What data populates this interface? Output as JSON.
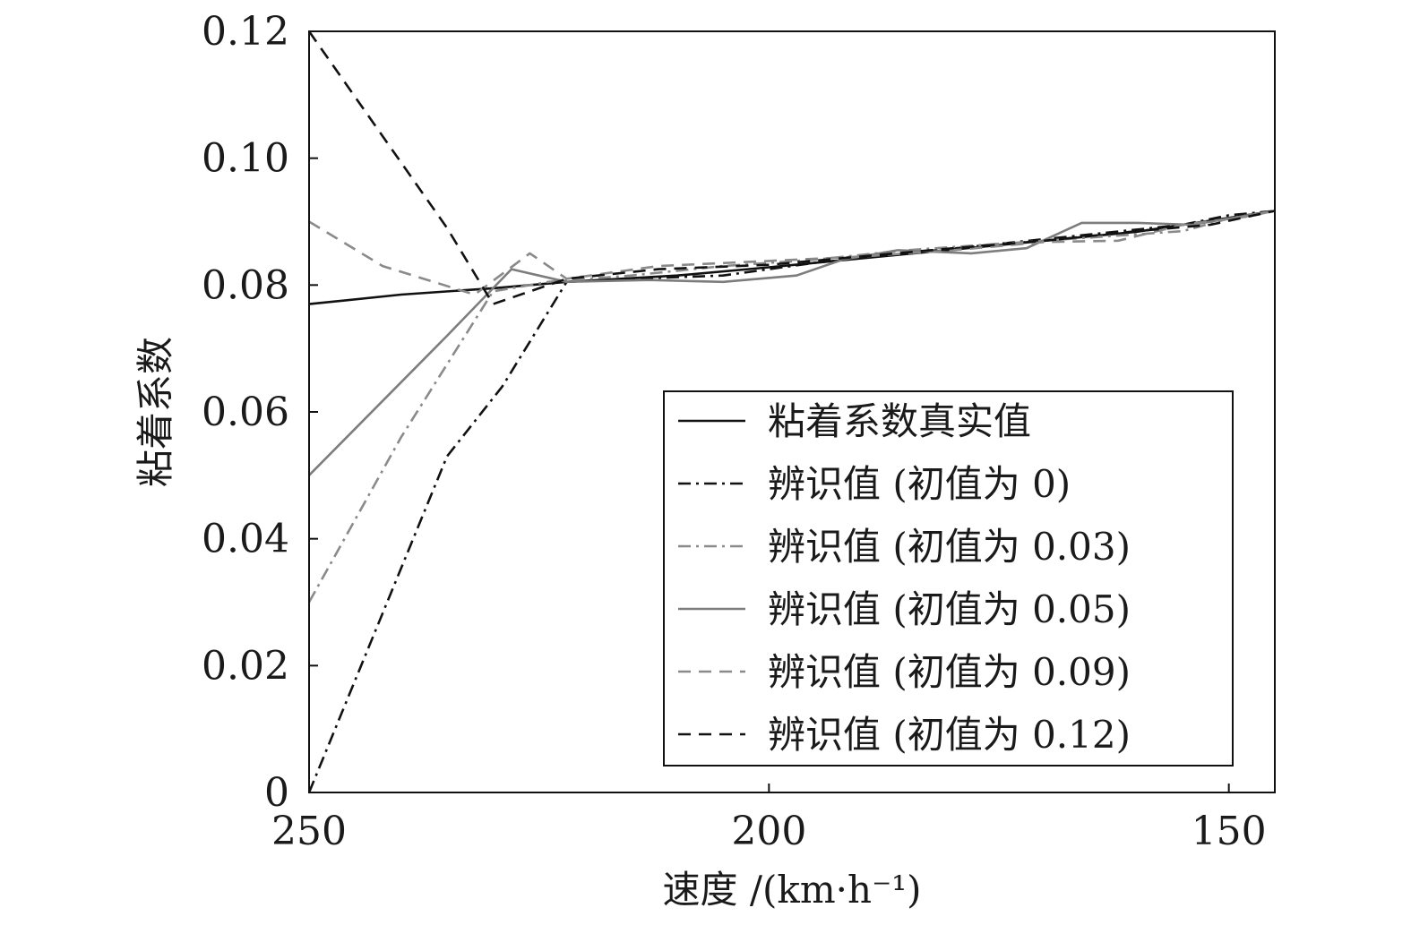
{
  "chart_data": {
    "type": "line",
    "title": "",
    "xlabel": "速度 /(km·h⁻¹)",
    "ylabel": "粘着系数",
    "xlim": [
      250,
      145
    ],
    "ylim": [
      0,
      0.12
    ],
    "x_reversed": true,
    "xticks": [
      {
        "value": 250,
        "label": "250"
      },
      {
        "value": 200,
        "label": "200"
      },
      {
        "value": 150,
        "label": "150"
      }
    ],
    "yticks": [
      {
        "value": 0,
        "label": "0"
      },
      {
        "value": 0.02,
        "label": "0.02"
      },
      {
        "value": 0.04,
        "label": "0.04"
      },
      {
        "value": 0.06,
        "label": "0.06"
      },
      {
        "value": 0.08,
        "label": "0.08"
      },
      {
        "value": 0.1,
        "label": "0.10"
      },
      {
        "value": 0.12,
        "label": "0.12"
      }
    ],
    "grid": false,
    "legend_position": "lower-right",
    "series": [
      {
        "name": "粘着系数真实值",
        "color": "#111111",
        "dash": "solid",
        "x": [
          250,
          240,
          230,
          222,
          210,
          200,
          190,
          180,
          170,
          160,
          150,
          145
        ],
        "y": [
          0.077,
          0.0785,
          0.0795,
          0.0805,
          0.0815,
          0.0828,
          0.0842,
          0.0856,
          0.087,
          0.0884,
          0.0906,
          0.0917
        ]
      },
      {
        "name": "辨识值 (初值为 0)",
        "color": "#111111",
        "dash": "dashdot",
        "x": [
          250,
          235,
          229,
          222,
          215,
          205,
          195,
          185,
          175,
          165,
          155,
          150,
          145
        ],
        "y": [
          0.0,
          0.053,
          0.064,
          0.0805,
          0.081,
          0.0815,
          0.0835,
          0.085,
          0.0865,
          0.088,
          0.0895,
          0.091,
          0.0917
        ]
      },
      {
        "name": "辨识值 (初值为 0.03)",
        "color": "#8a8a8a",
        "dash": "dashdot",
        "x": [
          250,
          240,
          230,
          224,
          215,
          205,
          195,
          185,
          175,
          165,
          155,
          150,
          145
        ],
        "y": [
          0.03,
          0.056,
          0.079,
          0.0805,
          0.0815,
          0.083,
          0.084,
          0.0855,
          0.0865,
          0.0875,
          0.0885,
          0.0905,
          0.0917
        ]
      },
      {
        "name": "辨识值 (初值为 0.05)",
        "color": "#7d7d7d",
        "dash": "solid",
        "x": [
          250,
          235,
          228,
          222,
          213,
          205,
          197,
          192,
          186,
          178,
          172,
          166,
          160,
          154,
          145
        ],
        "y": [
          0.05,
          0.072,
          0.0825,
          0.0805,
          0.0808,
          0.0805,
          0.0815,
          0.084,
          0.0855,
          0.085,
          0.0858,
          0.0898,
          0.0898,
          0.0895,
          0.0917
        ]
      },
      {
        "name": "辨识值 (初值为 0.09)",
        "color": "#8a8a8a",
        "dash": "dashed",
        "x": [
          250,
          242,
          232,
          226,
          222,
          212,
          200,
          190,
          180,
          170,
          162,
          155,
          148,
          145
        ],
        "y": [
          0.09,
          0.083,
          0.0785,
          0.085,
          0.081,
          0.083,
          0.0838,
          0.0845,
          0.0855,
          0.0868,
          0.087,
          0.0895,
          0.0908,
          0.0917
        ]
      },
      {
        "name": "辨识值 (初值为 0.12)",
        "color": "#111111",
        "dash": "dashed",
        "x": [
          250,
          235,
          230,
          222,
          212,
          200,
          190,
          180,
          170,
          160,
          152,
          145
        ],
        "y": [
          0.12,
          0.089,
          0.077,
          0.081,
          0.0825,
          0.0832,
          0.0845,
          0.0858,
          0.087,
          0.0885,
          0.0895,
          0.0917
        ]
      }
    ]
  }
}
